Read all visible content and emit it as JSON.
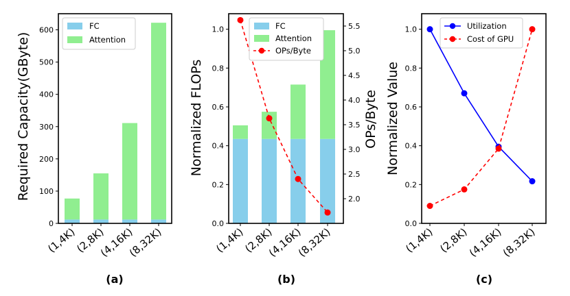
{
  "colors": {
    "fc": "#87ceeb",
    "attention": "#90ee90",
    "red": "#ff0000",
    "blue": "#0000ff"
  },
  "chart_data": [
    {
      "type": "bar",
      "panel_label": "(a)",
      "stacked": true,
      "categories": [
        "(1,4K)",
        "(2,8K)",
        "(4,16K)",
        "(8,32K)"
      ],
      "series": [
        {
          "name": "FC",
          "values": [
            12,
            12,
            12,
            12
          ]
        },
        {
          "name": "Attention",
          "values": [
            65,
            143,
            299,
            610
          ]
        }
      ],
      "ylabel": "Required Capacity(GByte)",
      "ylim": [
        0,
        650
      ],
      "yticks": [
        0,
        100,
        200,
        300,
        400,
        500,
        600
      ],
      "legend": "top-left"
    },
    {
      "type": "bar",
      "panel_label": "(b)",
      "stacked": true,
      "categories": [
        "(1,4K)",
        "(2,8K)",
        "(4,16K)",
        "(8,32K)"
      ],
      "series": [
        {
          "name": "FC",
          "values": [
            0.435,
            0.435,
            0.435,
            0.435
          ]
        },
        {
          "name": "Attention",
          "values": [
            0.07,
            0.14,
            0.28,
            0.56
          ]
        }
      ],
      "ylabel": "Normalized FLOPs",
      "ylim": [
        0,
        1.08
      ],
      "yticks": [
        0.0,
        0.2,
        0.4,
        0.6,
        0.8,
        1.0
      ],
      "secondary_axis": {
        "type": "line",
        "name": "OPs/Byte",
        "values": [
          5.62,
          3.63,
          2.4,
          1.72
        ],
        "ylabel": "OPs/Byte",
        "ylim": [
          1.5,
          5.75
        ],
        "yticks": [
          2.0,
          2.5,
          3.0,
          3.5,
          4.0,
          4.5,
          5.0,
          5.5
        ],
        "style": "dashed"
      },
      "legend": "top-right"
    },
    {
      "type": "line",
      "panel_label": "(c)",
      "categories": [
        "(1,4K)",
        "(2,8K)",
        "(4,16K)",
        "(8,32K)"
      ],
      "series": [
        {
          "name": "Utilization",
          "values": [
            1.0,
            0.67,
            0.395,
            0.217
          ],
          "style": "solid"
        },
        {
          "name": "Cost of GPU",
          "values": [
            0.09,
            0.175,
            0.385,
            1.0
          ],
          "style": "dashed"
        }
      ],
      "ylabel": "Normalized Value",
      "ylim": [
        0,
        1.08
      ],
      "yticks": [
        0.0,
        0.2,
        0.4,
        0.6,
        0.8,
        1.0
      ],
      "legend": "top-left"
    }
  ]
}
